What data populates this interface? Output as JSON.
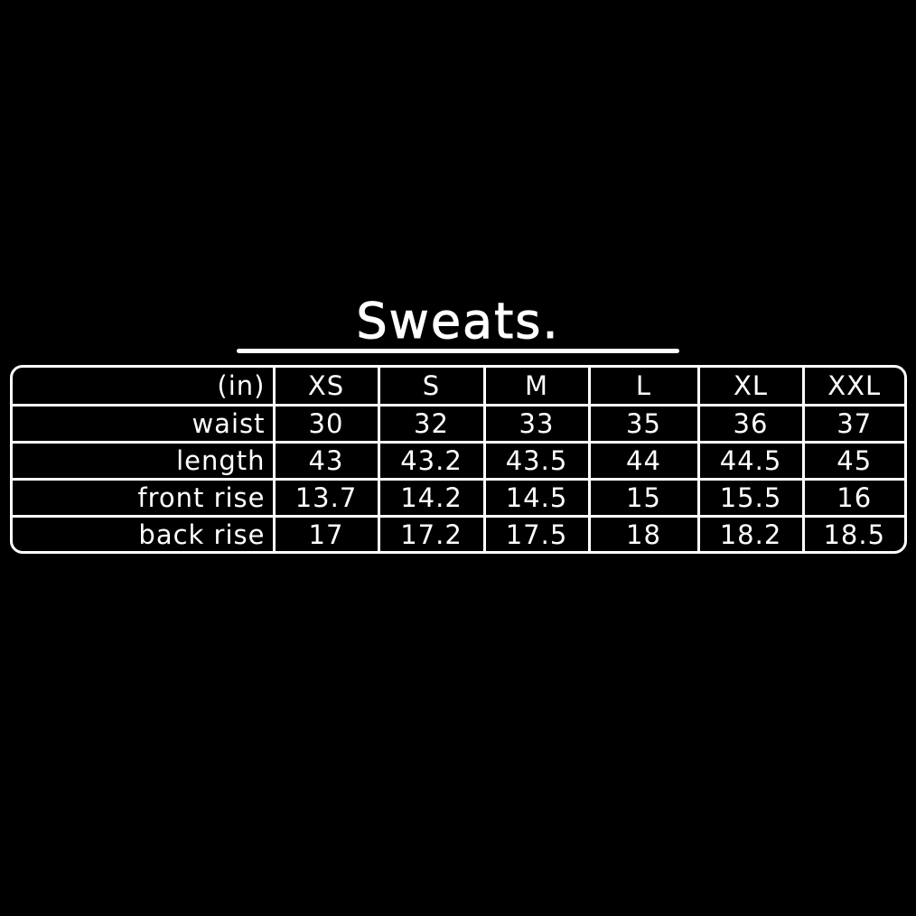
{
  "title": "Sweats.",
  "table": {
    "unit": "(in)",
    "sizes": [
      "XS",
      "S",
      "M",
      "L",
      "XL",
      "XXL"
    ],
    "rows": [
      {
        "label": "waist",
        "values": [
          "30",
          "32",
          "33",
          "35",
          "36",
          "37"
        ]
      },
      {
        "label": "length",
        "values": [
          "43",
          "43.2",
          "43.5",
          "44",
          "44.5",
          "45"
        ]
      },
      {
        "label": "front rise",
        "values": [
          "13.7",
          "14.2",
          "14.5",
          "15",
          "15.5",
          "16"
        ]
      },
      {
        "label": "back rise",
        "values": [
          "17",
          "17.2",
          "17.5",
          "18",
          "18.2",
          "18.5"
        ]
      }
    ]
  },
  "colors": {
    "background": "#000000",
    "foreground": "#ffffff"
  }
}
